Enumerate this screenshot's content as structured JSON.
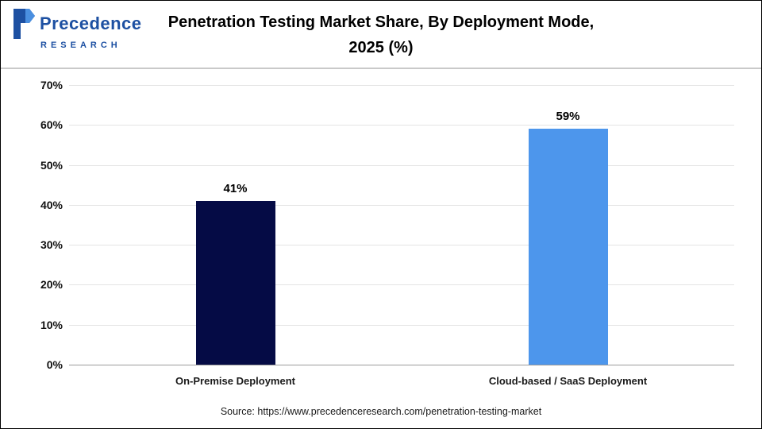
{
  "header": {
    "logo": {
      "brand": "Precedence",
      "subtitle": "RESEARCH"
    },
    "title_line1": "Penetration Testing Market Share, By Deployment Mode,",
    "title_line2": "2025 (%)"
  },
  "chart_data": {
    "type": "bar",
    "title": "Penetration Testing Market Share, By Deployment Mode, 2025 (%)",
    "categories": [
      "On-Premise Deployment",
      "Cloud-based / SaaS Deployment"
    ],
    "values": [
      41,
      59
    ],
    "value_labels": [
      "41%",
      "59%"
    ],
    "bar_colors": [
      "#050b45",
      "#4d96ec"
    ],
    "ylim": [
      0,
      70
    ],
    "yticks": [
      {
        "value": 70,
        "label": "70%"
      },
      {
        "value": 60,
        "label": "60%"
      },
      {
        "value": 50,
        "label": "50%"
      },
      {
        "value": 40,
        "label": "40%"
      },
      {
        "value": 30,
        "label": "30%"
      },
      {
        "value": 20,
        "label": "20%"
      },
      {
        "value": 10,
        "label": "10%"
      },
      {
        "value": 0,
        "label": "0%"
      }
    ],
    "grid": true,
    "legend_position": "none",
    "xlabel": "",
    "ylabel": ""
  },
  "footer": {
    "source": "Source: https://www.precedenceresearch.com/penetration-testing-market"
  },
  "colors": {
    "logo_blue": "#1d50a2",
    "logo_accent": "#4a8fe0",
    "gridline": "#e4e4e4",
    "axis_line": "#9a9a9a"
  }
}
